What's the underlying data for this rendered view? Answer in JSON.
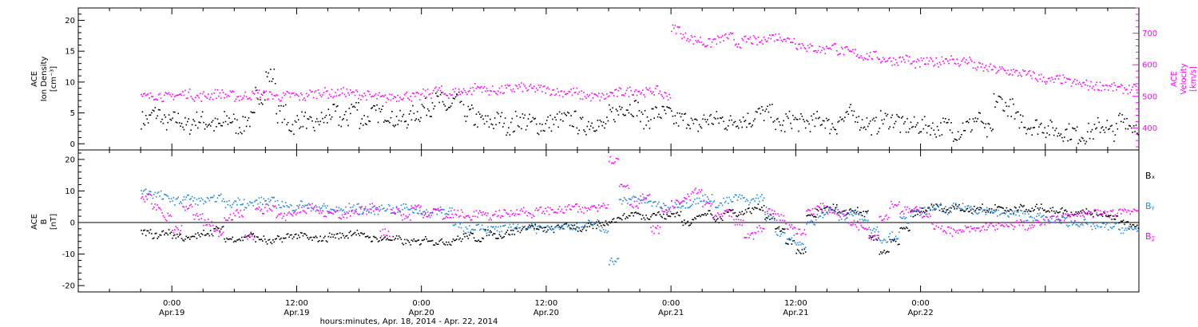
{
  "chart_data": [
    {
      "type": "scatter",
      "panel": "top",
      "ylabel": [
        "ACE",
        "Ion Density",
        "[cm⁻³]"
      ],
      "ylim": [
        -1,
        22
      ],
      "yticks": [
        0,
        5,
        10,
        15,
        20
      ],
      "y2label": [
        "ACE",
        "Velocity",
        "[km/s]"
      ],
      "y2lim": [
        330,
        780
      ],
      "y2ticks": [
        400,
        500,
        600,
        700
      ],
      "grid": false,
      "colors": {
        "density": "#000000",
        "velocity": "#ff00ff"
      },
      "series": [
        {
          "key": "density",
          "axis": "left",
          "x": [
            -3,
            -2,
            -1,
            0,
            1,
            2,
            3,
            4,
            5,
            6,
            7,
            8,
            9,
            10,
            11,
            12,
            13,
            14,
            15,
            16,
            17,
            18,
            19,
            20,
            21,
            22,
            23,
            24,
            25,
            26,
            27,
            28,
            29,
            30,
            31,
            32,
            33,
            34,
            35,
            36,
            37,
            38,
            39,
            40,
            41,
            42,
            43,
            44,
            45,
            46,
            47,
            48,
            49,
            50,
            51,
            52,
            53,
            54,
            55,
            56,
            57,
            58,
            59,
            60,
            61,
            62,
            63,
            64,
            65,
            66,
            67,
            68,
            69,
            70,
            71,
            72,
            73,
            74,
            75,
            76,
            77,
            78,
            79,
            80,
            81,
            82,
            83,
            84,
            85,
            86,
            87,
            88,
            89,
            90,
            91,
            92
          ],
          "y": [
            4,
            5,
            3.5,
            4,
            3,
            4,
            3.5,
            3,
            4,
            3,
            4,
            8,
            11,
            5,
            3,
            4,
            3,
            4,
            5,
            4,
            6,
            4,
            5,
            5,
            4,
            4,
            5,
            6,
            7,
            6,
            7,
            5,
            4,
            3.5,
            4,
            3,
            4,
            3.5,
            3,
            3.5,
            4,
            4,
            3,
            3.5,
            3,
            5,
            6,
            6,
            4,
            5,
            5,
            4,
            4,
            3,
            4,
            4,
            3.5,
            4,
            4,
            5,
            5,
            3,
            4,
            3.5,
            3.5,
            4,
            3,
            4,
            5,
            3.5,
            3,
            4,
            4,
            3,
            3,
            3,
            2.5,
            3,
            2,
            3,
            4,
            2,
            7,
            6,
            4,
            3,
            3,
            2.5,
            2,
            2,
            1.5,
            2,
            3,
            2,
            4,
            3
          ]
        },
        {
          "key": "velocity",
          "axis": "right",
          "x": [
            -3,
            -2,
            -1,
            0,
            1,
            2,
            3,
            4,
            5,
            6,
            7,
            8,
            9,
            10,
            11,
            12,
            13,
            14,
            15,
            16,
            17,
            18,
            19,
            20,
            21,
            22,
            23,
            24,
            25,
            26,
            27,
            28,
            29,
            30,
            31,
            32,
            33,
            34,
            35,
            36,
            37,
            38,
            39,
            40,
            41,
            42,
            43,
            44,
            45,
            46,
            47,
            48,
            49,
            50,
            51,
            52,
            53,
            54,
            55,
            56,
            57,
            58,
            59,
            60,
            61,
            62,
            63,
            64,
            65,
            66,
            67,
            68,
            69,
            70,
            71,
            72,
            73,
            74,
            75,
            76,
            77,
            78,
            79,
            80,
            81,
            82,
            83,
            84,
            85,
            86,
            87,
            88,
            89,
            90,
            91,
            92
          ],
          "y": [
            500,
            505,
            500,
            505,
            510,
            500,
            505,
            510,
            505,
            500,
            505,
            510,
            505,
            500,
            505,
            500,
            510,
            515,
            510,
            515,
            510,
            505,
            500,
            495,
            500,
            505,
            500,
            510,
            520,
            510,
            515,
            520,
            530,
            520,
            520,
            525,
            530,
            525,
            525,
            520,
            515,
            515,
            505,
            500,
            500,
            510,
            515,
            520,
            515,
            520,
            505,
            715,
            690,
            680,
            670,
            680,
            690,
            670,
            680,
            675,
            690,
            690,
            680,
            665,
            655,
            650,
            660,
            645,
            640,
            630,
            630,
            620,
            615,
            620,
            605,
            610,
            610,
            620,
            610,
            615,
            595,
            590,
            585,
            580,
            575,
            570,
            560,
            550,
            555,
            545,
            540,
            535,
            535,
            530,
            525,
            525
          ]
        }
      ]
    },
    {
      "type": "scatter",
      "panel": "bottom",
      "ylabel": [
        "ACE",
        "B",
        "[nT]"
      ],
      "ylim": [
        -22,
        23
      ],
      "yticks": [
        -20,
        -10,
        0,
        10,
        20
      ],
      "zero_line": true,
      "grid": false,
      "colors": {
        "Bx": "#000000",
        "By": "#1e88e5",
        "Bz": "#ff00ff"
      },
      "legend": [
        "Bₓ",
        "Bᵧ",
        "B𝓏"
      ],
      "series": [
        {
          "key": "Bx",
          "x": [
            -3,
            -2,
            -1,
            0,
            1,
            2,
            3,
            4,
            5,
            6,
            7,
            8,
            9,
            10,
            11,
            12,
            13,
            14,
            15,
            16,
            17,
            18,
            19,
            20,
            21,
            22,
            23,
            24,
            25,
            26,
            27,
            28,
            29,
            30,
            31,
            32,
            33,
            34,
            35,
            36,
            37,
            38,
            39,
            40,
            41,
            42,
            43,
            44,
            45,
            46,
            47,
            48,
            49,
            50,
            51,
            52,
            53,
            54,
            55,
            56,
            57,
            58,
            59,
            60,
            61,
            62,
            63,
            64,
            65,
            66,
            67,
            68,
            69,
            70,
            71,
            72,
            73,
            74,
            75,
            76,
            77,
            78,
            79,
            80,
            81,
            82,
            83,
            84,
            85,
            86,
            87,
            88,
            89,
            90,
            91,
            92
          ],
          "y": [
            -3,
            -4,
            -3,
            -4,
            -5,
            -4,
            -3,
            -2,
            -5,
            -5,
            -4,
            -5,
            -6,
            -5,
            -4,
            -4,
            -5,
            -5,
            -4,
            -4,
            -3,
            -4,
            -5,
            -5,
            -5,
            -6,
            -6,
            -5,
            -6,
            -6,
            -5,
            -4,
            -5,
            -3,
            -4,
            -3,
            -2,
            -1,
            -2,
            -2,
            -1,
            -1,
            -2,
            -1,
            0,
            1,
            2,
            3,
            2,
            3,
            2,
            3,
            0,
            2,
            3,
            1,
            4,
            3,
            4,
            5,
            2,
            -2,
            -6,
            -9,
            2,
            4,
            5,
            3,
            4,
            3,
            -5,
            -9,
            -6,
            -2,
            3,
            4,
            5,
            4,
            5,
            4,
            5,
            4,
            5,
            4,
            5,
            4,
            5,
            4,
            4,
            3,
            4,
            3,
            3,
            2,
            0,
            -1
          ]
        },
        {
          "key": "By",
          "x": [
            -3,
            -2,
            -1,
            0,
            1,
            2,
            3,
            4,
            5,
            6,
            7,
            8,
            9,
            10,
            11,
            12,
            13,
            14,
            15,
            16,
            17,
            18,
            19,
            20,
            21,
            22,
            23,
            24,
            25,
            26,
            27,
            28,
            29,
            30,
            31,
            32,
            33,
            34,
            35,
            36,
            37,
            38,
            39,
            40,
            41,
            42,
            43,
            44,
            45,
            46,
            47,
            48,
            49,
            50,
            51,
            52,
            53,
            54,
            55,
            56,
            57,
            58,
            59,
            60,
            61,
            62,
            63,
            64,
            65,
            66,
            67,
            68,
            69,
            70,
            71,
            72,
            73,
            74,
            75,
            76,
            77,
            78,
            79,
            80,
            81,
            82,
            83,
            84,
            85,
            86,
            87,
            88,
            89,
            90,
            91,
            92
          ],
          "y": [
            10,
            9,
            8,
            7,
            8,
            7,
            7,
            8,
            6,
            7,
            6,
            7,
            7,
            6,
            5,
            6,
            5,
            5,
            4,
            4,
            5,
            4,
            4,
            5,
            4,
            5,
            4,
            3,
            4,
            4,
            -1,
            -2,
            -1,
            -2,
            -2,
            -1,
            -1,
            -1,
            -2,
            -1,
            -1,
            -1,
            -1,
            0,
            -2,
            -12,
            7,
            8,
            7,
            6,
            5,
            6,
            6,
            7,
            8,
            6,
            7,
            8,
            7,
            8,
            2,
            -3,
            -5,
            -7,
            0,
            3,
            4,
            2,
            3,
            2,
            -2,
            -5,
            -4,
            1,
            3,
            4,
            5,
            4,
            5,
            5,
            4,
            4,
            3,
            3,
            3,
            2,
            2,
            1,
            1,
            0,
            0,
            -1,
            -1,
            -1,
            -2,
            -2
          ]
        },
        {
          "key": "Bz",
          "x": [
            -3,
            -2,
            -1,
            0,
            1,
            2,
            3,
            4,
            5,
            6,
            7,
            8,
            9,
            10,
            11,
            12,
            13,
            14,
            15,
            16,
            17,
            18,
            19,
            20,
            21,
            22,
            23,
            24,
            25,
            26,
            27,
            28,
            29,
            30,
            31,
            32,
            33,
            34,
            35,
            36,
            37,
            38,
            39,
            40,
            41,
            42,
            43,
            44,
            45,
            46,
            47,
            48,
            49,
            50,
            51,
            52,
            53,
            54,
            55,
            56,
            57,
            58,
            59,
            60,
            61,
            62,
            63,
            64,
            65,
            66,
            67,
            68,
            69,
            70,
            71,
            72,
            73,
            74,
            75,
            76,
            77,
            78,
            79,
            80,
            81,
            82,
            83,
            84,
            85,
            86,
            87,
            88,
            89,
            90,
            91,
            92
          ],
          "y": [
            8,
            5,
            2,
            -2,
            5,
            2,
            0,
            -3,
            2,
            3,
            -4,
            4,
            5,
            2,
            3,
            4,
            5,
            3,
            4,
            2,
            3,
            4,
            5,
            -3,
            4,
            2,
            5,
            3,
            4,
            2,
            3,
            2,
            3,
            2,
            3,
            3,
            4,
            3,
            4,
            4,
            4,
            5,
            4,
            5,
            6,
            20,
            12,
            6,
            8,
            -2,
            4,
            6,
            8,
            10,
            6,
            2,
            3,
            0,
            -4,
            -2,
            4,
            2,
            -1,
            -3,
            4,
            5,
            4,
            3,
            0,
            -1,
            -4,
            2,
            6,
            4,
            4,
            3,
            -1,
            -2,
            -3,
            -2,
            -2,
            -1,
            -1,
            -1,
            0,
            -1,
            0,
            1,
            2,
            2,
            3,
            3,
            3,
            3,
            4,
            4
          ]
        }
      ]
    }
  ],
  "x_axis": {
    "range": [
      -9,
      93
    ],
    "ticks": [
      {
        "t": 0,
        "time": "0:00",
        "date": "Apr.19"
      },
      {
        "t": 12,
        "time": "12:00",
        "date": "Apr.19"
      },
      {
        "t": 24,
        "time": "0:00",
        "date": "Apr.20"
      },
      {
        "t": 36,
        "time": "12:00",
        "date": "Apr.20"
      },
      {
        "t": 48,
        "time": "0:00",
        "date": "Apr.21"
      },
      {
        "t": 60,
        "time": "12:00",
        "date": "Apr.21"
      },
      {
        "t": 72,
        "time": "0:00",
        "date": "Apr.22"
      }
    ],
    "label": "hours:minutes, Apr. 18, 2014 - Apr. 22, 2014"
  }
}
